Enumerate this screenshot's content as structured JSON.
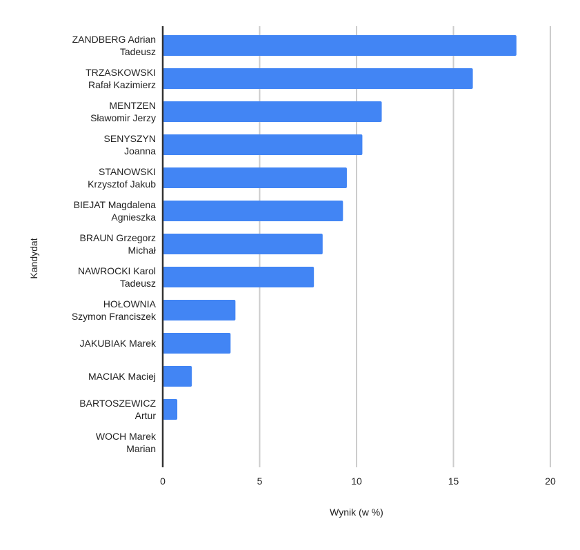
{
  "chart_data": {
    "type": "bar",
    "orientation": "horizontal",
    "xlabel": "Wynik (w %)",
    "ylabel": "Kandydat",
    "xlim": [
      0,
      20
    ],
    "x_ticks": [
      "0",
      "5",
      "10",
      "15",
      "20"
    ],
    "grid": true,
    "legend": "none",
    "categories": [
      [
        "ZANDBERG Adrian",
        "Tadeusz"
      ],
      [
        "TRZASKOWSKI",
        "Rafał Kazimierz"
      ],
      [
        "MENTZEN",
        "Sławomir Jerzy"
      ],
      [
        "SENYSZYN",
        "Joanna"
      ],
      [
        "STANOWSKI",
        "Krzysztof Jakub"
      ],
      [
        "BIEJAT Magdalena",
        "Agnieszka"
      ],
      [
        "BRAUN Grzegorz",
        "Michał"
      ],
      [
        "NAWROCKI Karol",
        "Tadeusz"
      ],
      [
        "HOŁOWNIA",
        "Szymon Franciszek"
      ],
      [
        "JAKUBIAK Marek"
      ],
      [
        "MACIAK Maciej"
      ],
      [
        "BARTOSZEWICZ",
        "Artur"
      ],
      [
        "WOCH Marek",
        "Marian"
      ]
    ],
    "values": [
      18.25,
      16.0,
      11.3,
      10.3,
      9.5,
      9.3,
      8.25,
      7.8,
      3.75,
      3.5,
      1.5,
      0.75,
      0.0
    ],
    "colors": {
      "bar": "#4285f4",
      "grid": "#cccccc",
      "axis": "#333333"
    }
  }
}
